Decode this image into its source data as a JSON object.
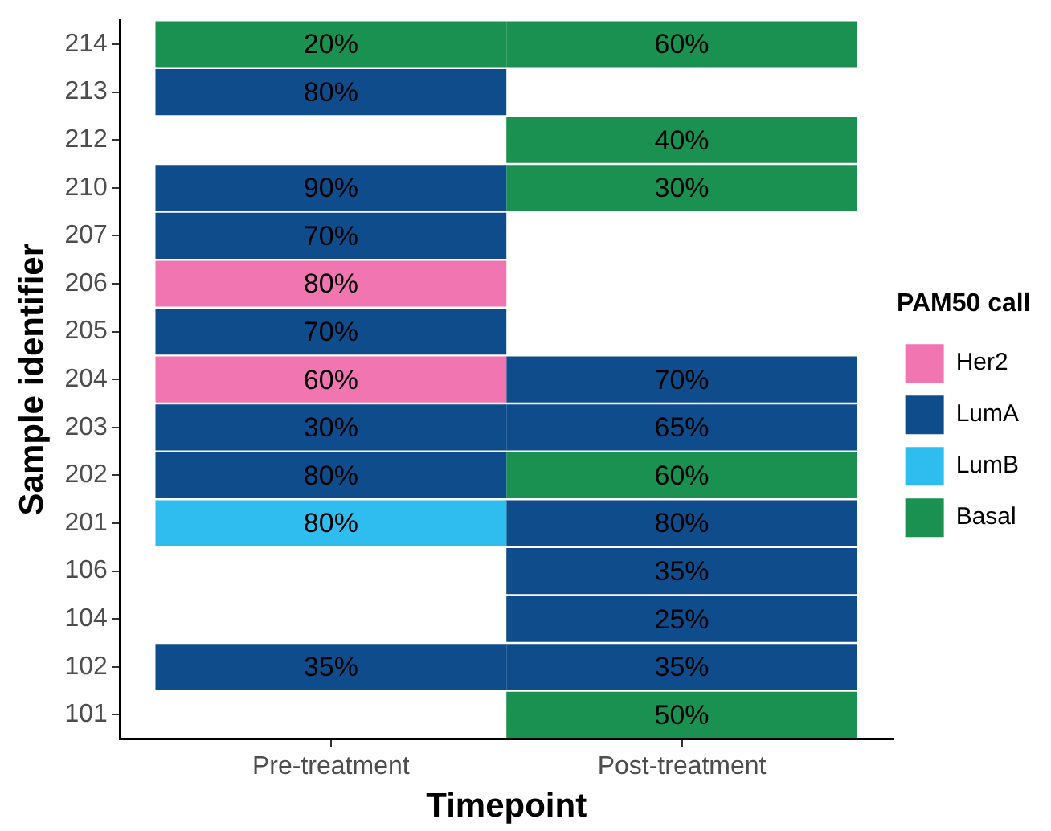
{
  "chart_data": {
    "type": "heatmap",
    "xlabel": "Timepoint",
    "ylabel": "Sample identifier",
    "legend_title": "PAM50 call",
    "legend": "right",
    "categories": [
      "Pre-treatment",
      "Post-treatment"
    ],
    "y_categories": [
      "214",
      "213",
      "212",
      "210",
      "207",
      "206",
      "205",
      "204",
      "203",
      "202",
      "201",
      "106",
      "104",
      "102",
      "101"
    ],
    "series": [
      {
        "name": "Her2",
        "color": "#f075b0",
        "values": [
          null,
          null
        ]
      },
      {
        "name": "LumA",
        "color": "#0f4c8c",
        "values": [
          null,
          null
        ]
      },
      {
        "name": "LumB",
        "color": "#2fbdef",
        "values": [
          null,
          null
        ]
      },
      {
        "name": "Basal",
        "color": "#1a9150",
        "values": [
          null,
          null
        ]
      }
    ],
    "cells": [
      [
        20,
        60
      ],
      [
        80,
        null
      ],
      [
        null,
        40
      ],
      [
        90,
        30
      ],
      [
        70,
        null
      ],
      [
        80,
        null
      ],
      [
        70,
        null
      ],
      [
        60,
        70
      ],
      [
        30,
        65
      ],
      [
        80,
        60
      ],
      [
        80,
        80
      ],
      [
        null,
        35
      ],
      [
        null,
        25
      ],
      [
        35,
        35
      ],
      [
        null,
        50
      ]
    ],
    "cell_labels": [
      [
        "20%",
        "60%"
      ],
      [
        "80%",
        null
      ],
      [
        null,
        "40%"
      ],
      [
        "90%",
        "30%"
      ],
      [
        "70%",
        null
      ],
      [
        "80%",
        null
      ],
      [
        "70%",
        null
      ],
      [
        "60%",
        "70%"
      ],
      [
        "30%",
        "65%"
      ],
      [
        "80%",
        "60%"
      ],
      [
        "80%",
        "80%"
      ],
      [
        null,
        "35%"
      ],
      [
        null,
        "25%"
      ],
      [
        "35%",
        "35%"
      ],
      [
        null,
        "50%"
      ]
    ],
    "colors": [
      [
        "#1a9150",
        "#1a9150"
      ],
      [
        "#0f4c8c",
        null
      ],
      [
        null,
        "#1a9150"
      ],
      [
        "#0f4c8c",
        "#1a9150"
      ],
      [
        "#0f4c8c",
        null
      ],
      [
        "#f075b0",
        null
      ],
      [
        "#0f4c8c",
        null
      ],
      [
        "#f075b0",
        "#0f4c8c"
      ],
      [
        "#0f4c8c",
        "#0f4c8c"
      ],
      [
        "#0f4c8c",
        "#1a9150"
      ],
      [
        "#2fbdef",
        "#0f4c8c"
      ],
      [
        null,
        "#0f4c8c"
      ],
      [
        null,
        "#0f4c8c"
      ],
      [
        "#0f4c8c",
        "#0f4c8c"
      ],
      [
        null,
        "#1a9150"
      ]
    ]
  }
}
